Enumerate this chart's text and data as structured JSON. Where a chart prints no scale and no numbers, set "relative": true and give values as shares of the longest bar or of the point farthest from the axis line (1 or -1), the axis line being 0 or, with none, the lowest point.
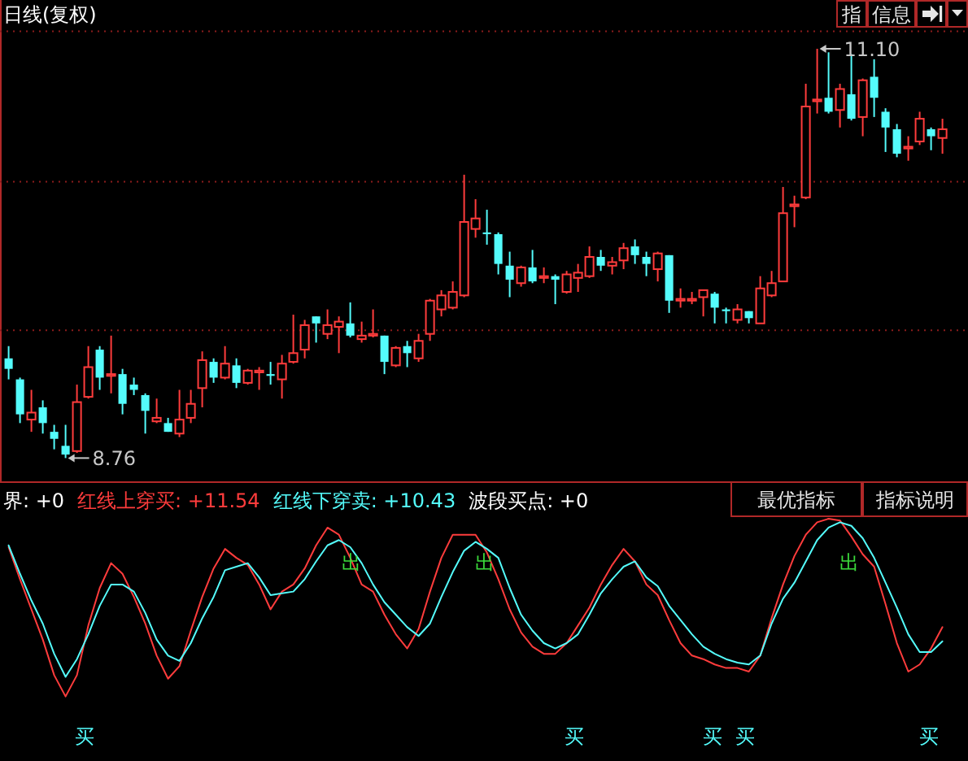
{
  "chart_data": [
    {
      "type": "candlestick",
      "title": "日线(复权)",
      "categories": [
        null,
        null,
        null,
        null,
        null,
        null,
        null,
        null,
        null,
        null,
        null,
        null,
        null,
        null,
        null,
        null,
        null,
        null,
        null,
        null,
        null,
        null,
        null,
        null,
        null,
        null,
        null,
        null,
        null,
        null,
        null,
        null,
        null,
        null,
        null,
        null,
        null,
        null,
        null,
        null,
        null,
        null,
        null,
        null,
        null,
        null,
        null,
        null,
        null,
        null,
        null,
        null,
        null,
        null,
        null,
        null,
        null,
        null,
        null,
        null,
        null,
        null,
        null,
        null,
        null,
        null,
        null,
        null,
        null,
        null,
        null,
        null,
        null,
        null,
        null,
        null,
        null,
        null,
        null,
        null,
        null,
        null,
        null
      ],
      "ohlc": [
        [
          9.33,
          9.4,
          9.21,
          9.27
        ],
        [
          9.21,
          9.22,
          8.96,
          9.01
        ],
        [
          8.98,
          9.15,
          8.91,
          9.02
        ],
        [
          9.05,
          9.09,
          8.9,
          8.96
        ],
        [
          8.91,
          8.95,
          8.81,
          8.87
        ],
        [
          8.83,
          8.95,
          8.76,
          8.78
        ],
        [
          8.8,
          9.18,
          8.79,
          9.08
        ],
        [
          9.11,
          9.4,
          9.1,
          9.28
        ],
        [
          9.38,
          9.4,
          9.15,
          9.22
        ],
        [
          9.23,
          9.46,
          9.13,
          9.24
        ],
        [
          9.24,
          9.27,
          9.01,
          9.07
        ],
        [
          9.18,
          9.22,
          9.12,
          9.15
        ],
        [
          9.12,
          9.13,
          8.9,
          9.03
        ],
        [
          8.97,
          9.1,
          8.96,
          8.99
        ],
        [
          8.96,
          8.99,
          8.91,
          8.91
        ],
        [
          8.9,
          9.15,
          8.88,
          8.98
        ],
        [
          8.99,
          9.15,
          8.96,
          9.07
        ],
        [
          9.16,
          9.37,
          9.05,
          9.32
        ],
        [
          9.31,
          9.33,
          9.19,
          9.22
        ],
        [
          9.22,
          9.4,
          9.21,
          9.3
        ],
        [
          9.29,
          9.33,
          9.16,
          9.19
        ],
        [
          9.19,
          9.27,
          9.18,
          9.26
        ],
        [
          9.25,
          9.28,
          9.15,
          9.26
        ],
        [
          9.24,
          9.31,
          9.18,
          9.23
        ],
        [
          9.21,
          9.35,
          9.1,
          9.3
        ],
        [
          9.31,
          9.58,
          9.3,
          9.36
        ],
        [
          9.38,
          9.55,
          9.33,
          9.52
        ],
        [
          9.57,
          9.57,
          9.42,
          9.53
        ],
        [
          9.47,
          9.61,
          9.44,
          9.52
        ],
        [
          9.51,
          9.57,
          9.36,
          9.54
        ],
        [
          9.53,
          9.65,
          9.45,
          9.46
        ],
        [
          9.44,
          9.54,
          9.42,
          9.46
        ],
        [
          9.46,
          9.61,
          9.45,
          9.47
        ],
        [
          9.46,
          9.46,
          9.24,
          9.31
        ],
        [
          9.29,
          9.4,
          9.28,
          9.39
        ],
        [
          9.4,
          9.43,
          9.28,
          9.36
        ],
        [
          9.33,
          9.47,
          9.31,
          9.43
        ],
        [
          9.47,
          9.67,
          9.43,
          9.66
        ],
        [
          9.61,
          9.72,
          9.57,
          9.69
        ],
        [
          9.62,
          9.77,
          9.61,
          9.71
        ],
        [
          9.69,
          10.38,
          9.68,
          10.11
        ],
        [
          10.07,
          10.24,
          10.02,
          10.13
        ],
        [
          10.05,
          10.18,
          9.98,
          10.04
        ],
        [
          10.04,
          10.05,
          9.81,
          9.87
        ],
        [
          9.86,
          9.94,
          9.68,
          9.78
        ],
        [
          9.76,
          9.86,
          9.74,
          9.85
        ],
        [
          9.85,
          9.95,
          9.76,
          9.77
        ],
        [
          9.79,
          9.85,
          9.76,
          9.8
        ],
        [
          9.8,
          9.81,
          9.64,
          9.78
        ],
        [
          9.71,
          9.83,
          9.7,
          9.81
        ],
        [
          9.79,
          9.87,
          9.71,
          9.82
        ],
        [
          9.8,
          9.97,
          9.79,
          9.91
        ],
        [
          9.91,
          9.95,
          9.83,
          9.86
        ],
        [
          9.86,
          9.91,
          9.81,
          9.88
        ],
        [
          9.89,
          9.99,
          9.84,
          9.96
        ],
        [
          9.97,
          10.01,
          9.87,
          9.92
        ],
        [
          9.91,
          9.94,
          9.8,
          9.87
        ],
        [
          9.84,
          9.94,
          9.77,
          9.93
        ],
        [
          9.92,
          9.92,
          9.59,
          9.66
        ],
        [
          9.66,
          9.73,
          9.62,
          9.67
        ],
        [
          9.66,
          9.71,
          9.64,
          9.67
        ],
        [
          9.68,
          9.72,
          9.57,
          9.72
        ],
        [
          9.7,
          9.71,
          9.53,
          9.62
        ],
        [
          9.61,
          9.62,
          9.53,
          9.6
        ],
        [
          9.55,
          9.64,
          9.53,
          9.61
        ],
        [
          9.6,
          9.6,
          9.53,
          9.56
        ],
        [
          9.53,
          9.8,
          9.53,
          9.73
        ],
        [
          9.69,
          9.83,
          9.68,
          9.76
        ],
        [
          9.77,
          10.31,
          9.77,
          10.16
        ],
        [
          10.2,
          10.26,
          10.08,
          10.21
        ],
        [
          10.25,
          10.9,
          10.24,
          10.77
        ],
        [
          10.8,
          11.1,
          10.73,
          10.81
        ],
        [
          10.82,
          11.08,
          10.73,
          10.74
        ],
        [
          10.75,
          10.9,
          10.65,
          10.87
        ],
        [
          10.84,
          11.07,
          10.69,
          10.7
        ],
        [
          10.71,
          10.93,
          10.6,
          10.92
        ],
        [
          10.94,
          11.04,
          10.71,
          10.82
        ],
        [
          10.74,
          10.76,
          10.51,
          10.65
        ],
        [
          10.64,
          10.67,
          10.48,
          10.5
        ],
        [
          10.53,
          10.6,
          10.46,
          10.54
        ],
        [
          10.57,
          10.74,
          10.55,
          10.7
        ],
        [
          10.64,
          10.65,
          10.52,
          10.6
        ],
        [
          10.59,
          10.7,
          10.5,
          10.64
        ]
      ],
      "colors": [
        "#54fcfc",
        "#54fcfc",
        "#ff3c3c",
        "#54fcfc",
        "#54fcfc",
        "#54fcfc",
        "#ff3c3c",
        "#ff3c3c",
        "#54fcfc",
        "#ff3c3c",
        "#54fcfc",
        "#54fcfc",
        "#54fcfc",
        "#ff3c3c",
        "#54fcfc",
        "#ff3c3c",
        "#ff3c3c",
        "#ff3c3c",
        "#54fcfc",
        "#ff3c3c",
        "#54fcfc",
        "#ff3c3c",
        "#ff3c3c",
        "#54fcfc",
        "#ff3c3c",
        "#ff3c3c",
        "#ff3c3c",
        "#54fcfc",
        "#ff3c3c",
        "#ff3c3c",
        "#54fcfc",
        "#ff3c3c",
        "#ff3c3c",
        "#54fcfc",
        "#ff3c3c",
        "#54fcfc",
        "#ff3c3c",
        "#ff3c3c",
        "#ff3c3c",
        "#ff3c3c",
        "#ff3c3c",
        "#ff3c3c",
        "#54fcfc",
        "#54fcfc",
        "#54fcfc",
        "#ff3c3c",
        "#54fcfc",
        "#ff3c3c",
        "#54fcfc",
        "#ff3c3c",
        "#ff3c3c",
        "#ff3c3c",
        "#54fcfc",
        "#ff3c3c",
        "#ff3c3c",
        "#54fcfc",
        "#54fcfc",
        "#ff3c3c",
        "#54fcfc",
        "#ff3c3c",
        "#ff3c3c",
        "#ff3c3c",
        "#54fcfc",
        "#54fcfc",
        "#ff3c3c",
        "#54fcfc",
        "#ff3c3c",
        "#ff3c3c",
        "#ff3c3c",
        "#ff3c3c",
        "#ff3c3c",
        "#ff3c3c",
        "#54fcfc",
        "#ff3c3c",
        "#54fcfc",
        "#ff3c3c",
        "#54fcfc",
        "#54fcfc",
        "#54fcfc",
        "#ff3c3c",
        "#ff3c3c",
        "#54fcfc",
        "#ff3c3c"
      ],
      "yticks": [
        {
          "value": 11.2,
          "label": null
        },
        {
          "value": 10.34,
          "label": null
        },
        {
          "value": 9.49,
          "label": null
        }
      ],
      "grid": "y",
      "annotations": [
        "11.10",
        "8.76",
        "指",
        "信息"
      ]
    },
    {
      "type": "line",
      "relative": true,
      "categories": [
        null,
        null,
        null,
        null,
        null,
        null,
        null,
        null,
        null,
        null,
        null,
        null,
        null,
        null,
        null,
        null,
        null,
        null,
        null,
        null,
        null,
        null,
        null,
        null,
        null,
        null,
        null,
        null,
        null,
        null,
        null,
        null,
        null,
        null,
        null,
        null,
        null,
        null,
        null,
        null,
        null,
        null,
        null,
        null,
        null,
        null,
        null,
        null,
        null,
        null,
        null,
        null,
        null,
        null,
        null,
        null,
        null,
        null,
        null,
        null,
        null,
        null,
        null,
        null,
        null,
        null,
        null,
        null,
        null,
        null,
        null,
        null,
        null,
        null,
        null,
        null,
        null,
        null,
        null,
        null,
        null,
        null,
        null
      ],
      "series": [
        {
          "name": "红线上穿买: +11.54",
          "color": "#ff3c3c",
          "values": [
            0.84,
            0.66,
            0.49,
            0.32,
            0.12,
            0,
            0.12,
            0.4,
            0.61,
            0.75,
            0.69,
            0.56,
            0.41,
            0.23,
            0.1,
            0.17,
            0.37,
            0.56,
            0.72,
            0.83,
            0.78,
            0.74,
            0.63,
            0.49,
            0.59,
            0.63,
            0.72,
            0.85,
            0.95,
            0.91,
            0.78,
            0.63,
            0.59,
            0.46,
            0.35,
            0.27,
            0.38,
            0.59,
            0.78,
            0.91,
            0.91,
            0.91,
            0.81,
            0.66,
            0.49,
            0.36,
            0.28,
            0.24,
            0.24,
            0.3,
            0.4,
            0.5,
            0.63,
            0.74,
            0.83,
            0.76,
            0.63,
            0.57,
            0.43,
            0.3,
            0.23,
            0.21,
            0.18,
            0.16,
            0.16,
            0.14,
            0.23,
            0.44,
            0.63,
            0.79,
            0.91,
            0.98,
            1,
            0.99,
            0.9,
            0.8,
            0.73,
            0.52,
            0.3,
            0.14,
            0.18,
            0.27,
            0.39
          ]
        },
        {
          "name": "红线下穿卖: +10.43",
          "color": "#54fcfc",
          "values": [
            0.85,
            0.69,
            0.54,
            0.41,
            0.24,
            0.11,
            0.21,
            0.35,
            0.51,
            0.63,
            0.63,
            0.59,
            0.47,
            0.32,
            0.23,
            0.2,
            0.3,
            0.44,
            0.56,
            0.71,
            0.73,
            0.75,
            0.67,
            0.57,
            0.58,
            0.59,
            0.66,
            0.76,
            0.85,
            0.88,
            0.84,
            0.75,
            0.63,
            0.53,
            0.46,
            0.39,
            0.34,
            0.41,
            0.56,
            0.7,
            0.82,
            0.87,
            0.83,
            0.78,
            0.61,
            0.46,
            0.37,
            0.3,
            0.27,
            0.3,
            0.35,
            0.46,
            0.58,
            0.66,
            0.73,
            0.76,
            0.67,
            0.62,
            0.51,
            0.43,
            0.35,
            0.28,
            0.24,
            0.21,
            0.19,
            0.18,
            0.23,
            0.41,
            0.55,
            0.64,
            0.76,
            0.88,
            0.95,
            0.98,
            0.96,
            0.89,
            0.78,
            0.64,
            0.5,
            0.35,
            0.25,
            0.25,
            0.31
          ]
        }
      ],
      "legend": "top left",
      "annotations": [
        "界: +0",
        "波段买点: +0",
        "最优指标",
        "指标说明",
        "出",
        "出",
        "出",
        "买",
        "买",
        "买",
        "买",
        "买"
      ]
    }
  ]
}
